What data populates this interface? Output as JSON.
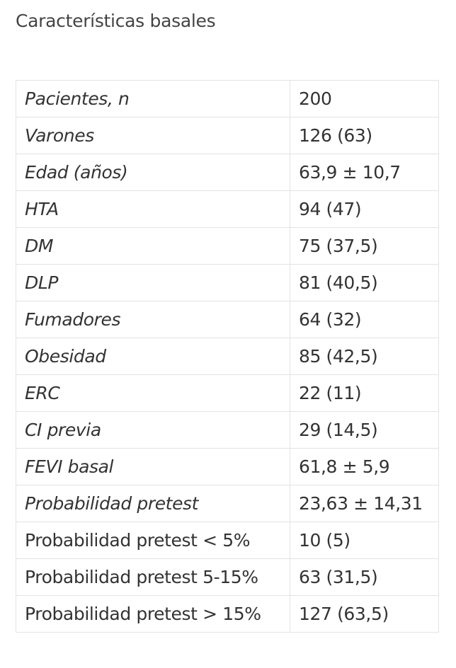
{
  "title": "Características basales",
  "table": {
    "rows": [
      [
        "Pacientes, n",
        "200"
      ],
      [
        "Varones",
        "126 (63)"
      ],
      [
        "Edad (años)",
        "63,9 ± 10,7"
      ],
      [
        "HTA",
        "94 (47)"
      ],
      [
        "DM",
        "75 (37,5)"
      ],
      [
        "DLP",
        "81 (40,5)"
      ],
      [
        "Fumadores",
        "64 (32)"
      ],
      [
        "Obesidad",
        "85 (42,5)"
      ],
      [
        "ERC",
        "22 (11)"
      ],
      [
        "CI previa",
        "29 (14,5)"
      ],
      [
        "FEVI basal",
        "61,8 ± 5,9"
      ],
      [
        "Probabilidad pretest",
        "23,63 ± 14,31"
      ],
      [
        "Probabilidad pretest < 5%",
        "10 (5)"
      ],
      [
        "Probabilidad pretest 5-15%",
        "63 (31,5)"
      ],
      [
        "Probabilidad pretest > 15%",
        "127 (63,5)"
      ]
    ]
  }
}
